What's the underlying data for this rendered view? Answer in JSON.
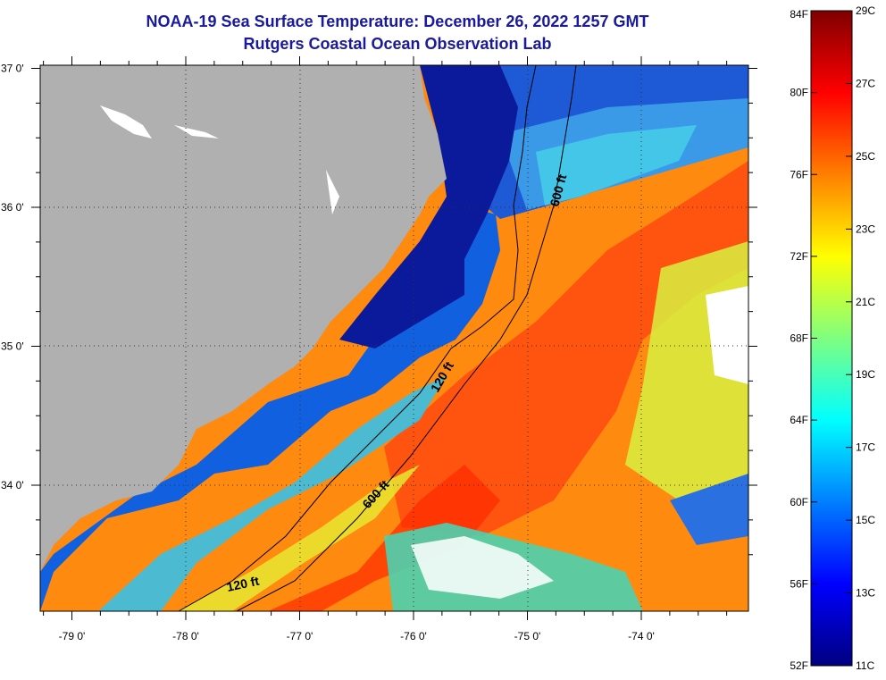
{
  "title": {
    "line1": "NOAA-19 Sea Surface Temperature:  December 26, 2022 1257 GMT",
    "line2": "Rutgers Coastal Ocean Observation Lab"
  },
  "map": {
    "lat_labels": [
      {
        "lat": 37.0,
        "text": "37 0'"
      },
      {
        "lat": 36.0,
        "text": "36 0'"
      },
      {
        "lat": 35.0,
        "text": "35 0'"
      },
      {
        "lat": 34.0,
        "text": "34 0'"
      }
    ],
    "lon_labels": [
      {
        "lon": -79.0,
        "text": "-79 0'"
      },
      {
        "lon": -78.0,
        "text": "-78 0'"
      },
      {
        "lon": -77.0,
        "text": "-77 0'"
      },
      {
        "lon": -76.0,
        "text": "-76 0'"
      },
      {
        "lon": -75.0,
        "text": "-75 0'"
      },
      {
        "lon": -74.0,
        "text": "-74 0'"
      }
    ],
    "contours": [
      {
        "text": "600 ft"
      },
      {
        "text": "120 ft"
      },
      {
        "text": "600 ft"
      },
      {
        "text": "120 ft"
      }
    ],
    "colors": {
      "land": "#b0b0b0",
      "cloud": "#ffffff",
      "frame": "#000000"
    }
  },
  "colorbar": {
    "fahrenheit_labels": [
      "84F",
      "80F",
      "76F",
      "72F",
      "68F",
      "64F",
      "60F",
      "56F",
      "52F"
    ],
    "celsius_labels": [
      "29C",
      "27C",
      "25C",
      "23C",
      "21C",
      "19C",
      "17C",
      "15C",
      "13C",
      "11C"
    ],
    "gradient_stops": [
      "#00007f",
      "#0000ff",
      "#007fff",
      "#00ffff",
      "#7fff7f",
      "#ffff00",
      "#ff7f00",
      "#ff0000",
      "#7f0000"
    ]
  }
}
